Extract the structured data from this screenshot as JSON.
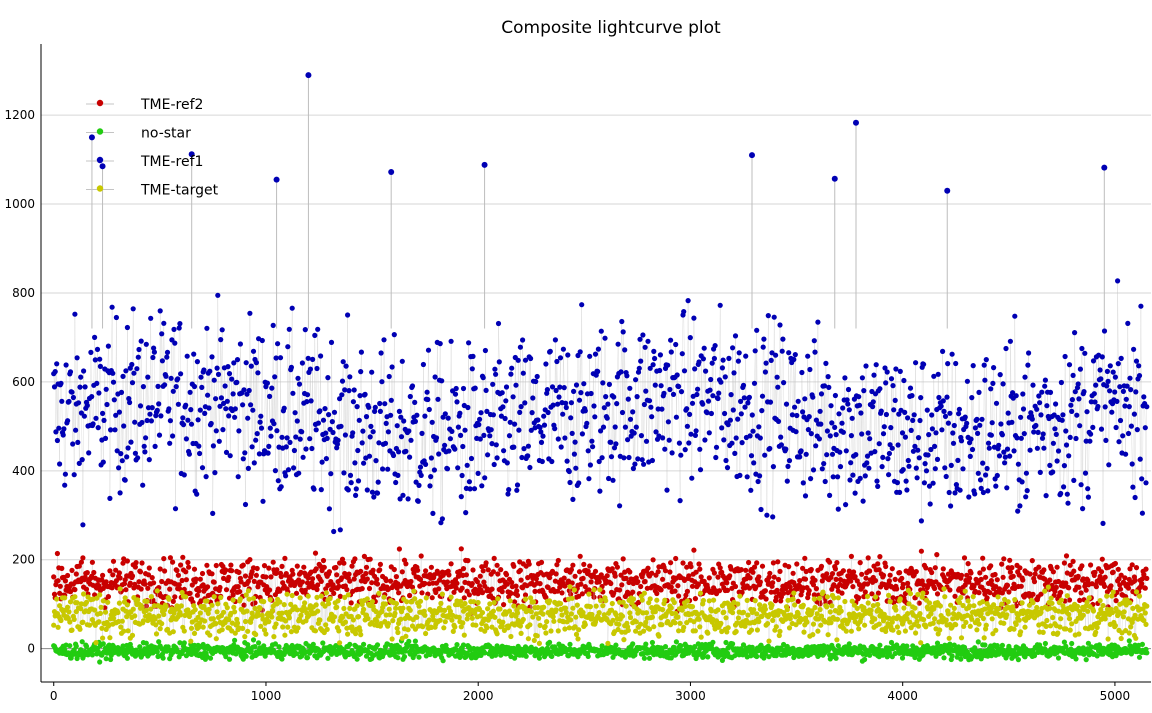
{
  "chart_data": {
    "type": "scatter",
    "title": "Composite lightcurve plot",
    "xlabel": "",
    "ylabel": "",
    "xlim": [
      -60,
      5170
    ],
    "ylim": [
      -75,
      1360
    ],
    "x_ticks": [
      "0",
      "1000",
      "2000",
      "3000",
      "4000",
      "5000"
    ],
    "y_ticks": [
      "0",
      "200",
      "400",
      "600",
      "800",
      "1000",
      "1200"
    ],
    "grid": true,
    "legend_position": "top-left",
    "series": [
      {
        "name": "TME-ref2",
        "color": "#c80000",
        "typical_range": [
          60,
          250
        ],
        "center": 150
      },
      {
        "name": "no-star",
        "color": "#22cc11",
        "typical_range": [
          -35,
          25
        ],
        "center": -5
      },
      {
        "name": "TME-ref1",
        "color": "#0000b4",
        "typical_range": [
          200,
          900
        ],
        "center": 520,
        "peaks": [
          {
            "x": 1200,
            "y": 1290
          },
          {
            "x": 3780,
            "y": 1183
          },
          {
            "x": 650,
            "y": 1112
          },
          {
            "x": 3290,
            "y": 1110
          },
          {
            "x": 4950,
            "y": 1082
          },
          {
            "x": 2030,
            "y": 1088
          },
          {
            "x": 1590,
            "y": 1072
          },
          {
            "x": 1050,
            "y": 1055
          },
          {
            "x": 3680,
            "y": 1057
          },
          {
            "x": 4210,
            "y": 1030
          },
          {
            "x": 180,
            "y": 1150
          },
          {
            "x": 230,
            "y": 1085
          }
        ]
      },
      {
        "name": "TME-target",
        "color": "#c8c800",
        "typical_range": [
          0,
          170
        ],
        "center": 75
      }
    ]
  }
}
